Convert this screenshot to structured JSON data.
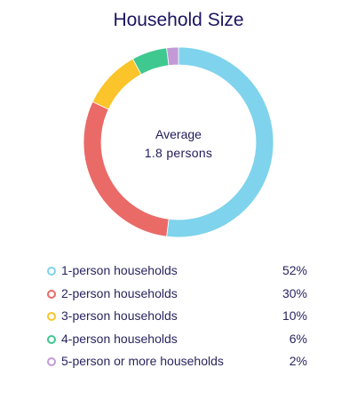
{
  "chart_data": {
    "type": "donut",
    "title": "Household Size",
    "center": {
      "label": "Average",
      "value": "1.8 persons"
    },
    "unit": "%",
    "categories": [
      "1-person households",
      "2-person households",
      "3-person households",
      "4-person households",
      "5-person or more households"
    ],
    "values": [
      52,
      30,
      10,
      6,
      2
    ],
    "value_labels": [
      "52%",
      "30%",
      "10%",
      "6%",
      "2%"
    ],
    "colors": [
      "#7fd3ec",
      "#ea6a68",
      "#fac42a",
      "#3fc88f",
      "#c39ad6"
    ],
    "start": "top",
    "direction": "clockwise",
    "legend_position": "bottom"
  }
}
